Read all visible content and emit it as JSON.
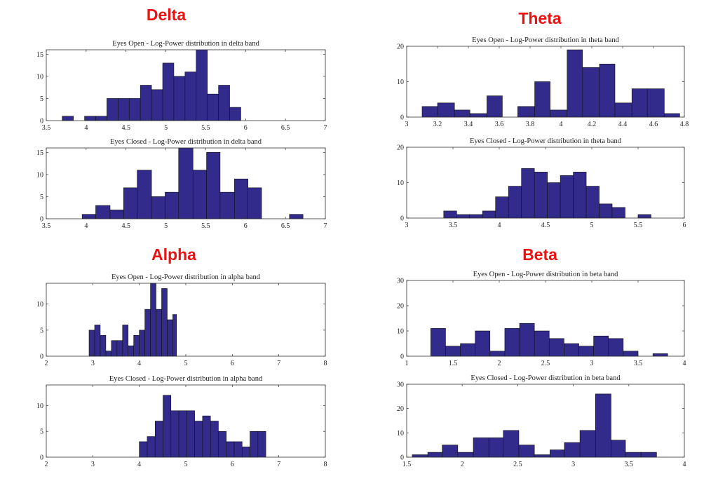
{
  "band_titles": {
    "delta": "Delta",
    "theta": "Theta",
    "alpha": "Alpha",
    "beta": "Beta"
  },
  "chart_data": [
    {
      "type": "histogram",
      "title": "Eyes Open - Log-Power distribution in delta band",
      "xlim": [
        3.5,
        7
      ],
      "ylim": [
        0,
        16
      ],
      "xticks": [
        3.5,
        4,
        4.5,
        5,
        5.5,
        6,
        6.5,
        7
      ],
      "xtick_labels": [
        "3.5",
        "4",
        "4.5",
        "5",
        "5.5",
        "6",
        "6.5",
        "7"
      ],
      "yticks": [
        0,
        5,
        10,
        15
      ],
      "ytick_labels": [
        "0",
        "5",
        "10",
        "15"
      ],
      "bin_edges": [
        3.7,
        3.84,
        3.98,
        4.12,
        4.26,
        4.4,
        4.54,
        4.68,
        4.82,
        4.96,
        5.1,
        5.24,
        5.38,
        5.52,
        5.66,
        5.8,
        5.94
      ],
      "counts": [
        1,
        0,
        1,
        1,
        5,
        5,
        5,
        8,
        7,
        13,
        10,
        11,
        16,
        6,
        8,
        3
      ],
      "color": "#322b8c"
    },
    {
      "type": "histogram",
      "title": "Eyes Closed - Log-Power distribution in delta band",
      "xlim": [
        3.5,
        7
      ],
      "ylim": [
        0,
        16
      ],
      "xticks": [
        3.5,
        4,
        4.5,
        5,
        5.5,
        6,
        6.5,
        7
      ],
      "xtick_labels": [
        "3.5",
        "4",
        "4.5",
        "5",
        "5.5",
        "6",
        "6.5",
        "7"
      ],
      "yticks": [
        0,
        5,
        10,
        15
      ],
      "ytick_labels": [
        "0",
        "5",
        "10",
        "15"
      ],
      "bin_edges": [
        3.95,
        4.12,
        4.3,
        4.47,
        4.64,
        4.82,
        4.99,
        5.16,
        5.34,
        5.51,
        5.68,
        5.86,
        6.03,
        6.2,
        6.38,
        6.55,
        6.72
      ],
      "counts": [
        1,
        3,
        2,
        7,
        11,
        5,
        6,
        16,
        11,
        15,
        6,
        9,
        7,
        0,
        0,
        1
      ],
      "color": "#322b8c"
    },
    {
      "type": "histogram",
      "title": "Eyes Open - Log-Power distribution in theta band",
      "xlim": [
        3,
        4.8
      ],
      "ylim": [
        0,
        20
      ],
      "xticks": [
        3,
        3.2,
        3.4,
        3.6,
        3.8,
        4,
        4.2,
        4.4,
        4.6,
        4.8
      ],
      "xtick_labels": [
        "3",
        "3.2",
        "3.4",
        "3.6",
        "3.8",
        "4",
        "4.2",
        "4.4",
        "4.6",
        "4.8"
      ],
      "yticks": [
        0,
        10,
        20
      ],
      "ytick_labels": [
        "0",
        "10",
        "20"
      ],
      "bin_edges": [
        3.1,
        3.2,
        3.31,
        3.41,
        3.52,
        3.62,
        3.72,
        3.83,
        3.93,
        4.04,
        4.14,
        4.25,
        4.35,
        4.46,
        4.56,
        4.67,
        4.77
      ],
      "counts": [
        3,
        4,
        2,
        1,
        6,
        0,
        3,
        10,
        2,
        19,
        14,
        15,
        4,
        8,
        8,
        1
      ],
      "color": "#322b8c"
    },
    {
      "type": "histogram",
      "title": "Eyes Closed - Log-Power distribution in theta band",
      "xlim": [
        3,
        6
      ],
      "ylim": [
        0,
        20
      ],
      "xticks": [
        3,
        3.5,
        4,
        4.5,
        5,
        5.5,
        6
      ],
      "xtick_labels": [
        "3",
        "3.5",
        "4",
        "4.5",
        "5",
        "5.5",
        "6"
      ],
      "yticks": [
        0,
        10,
        20
      ],
      "ytick_labels": [
        "0",
        "10",
        "20"
      ],
      "bin_edges": [
        3.4,
        3.54,
        3.68,
        3.82,
        3.96,
        4.1,
        4.24,
        4.38,
        4.52,
        4.66,
        4.8,
        4.94,
        5.08,
        5.22,
        5.36,
        5.5,
        5.64
      ],
      "counts": [
        2,
        1,
        1,
        2,
        6,
        9,
        14,
        13,
        10,
        12,
        13,
        9,
        4,
        3,
        0,
        1
      ],
      "color": "#322b8c"
    },
    {
      "type": "histogram",
      "title": "Eyes Open - Log-Power distribution in alpha band",
      "xlim": [
        2,
        8
      ],
      "ylim": [
        0,
        14
      ],
      "xticks": [
        2,
        3,
        4,
        5,
        6,
        7,
        8
      ],
      "xtick_labels": [
        "2",
        "3",
        "4",
        "5",
        "6",
        "7",
        "8"
      ],
      "yticks": [
        0,
        5,
        10
      ],
      "ytick_labels": [
        "0",
        "5",
        "10"
      ],
      "bin_edges": [
        2.92,
        3.04,
        3.16,
        3.28,
        3.4,
        3.52,
        3.64,
        3.76,
        3.88,
        4,
        4.12,
        4.24,
        4.36,
        4.48,
        4.6,
        4.72,
        4.8
      ],
      "counts": [
        5,
        6,
        4,
        1,
        3,
        3,
        6,
        2,
        4,
        5,
        9,
        14,
        9,
        13,
        7,
        8
      ],
      "color": "#322b8c"
    },
    {
      "type": "histogram",
      "title": "Eyes Closed - Log-Power distribution in alpha band",
      "xlim": [
        2,
        8
      ],
      "ylim": [
        0,
        14
      ],
      "xticks": [
        2,
        3,
        4,
        5,
        6,
        7,
        8
      ],
      "xtick_labels": [
        "2",
        "3",
        "4",
        "5",
        "6",
        "7",
        "8"
      ],
      "yticks": [
        0,
        5,
        10
      ],
      "ytick_labels": [
        "0",
        "5",
        "10"
      ],
      "bin_edges": [
        4,
        4.17,
        4.34,
        4.51,
        4.68,
        4.85,
        5.02,
        5.19,
        5.36,
        5.53,
        5.7,
        5.87,
        6.04,
        6.21,
        6.38,
        6.55,
        6.72
      ],
      "counts": [
        3,
        4,
        7,
        12,
        9,
        9,
        9,
        7,
        8,
        7,
        5,
        3,
        3,
        2,
        5,
        5
      ],
      "color": "#322b8c"
    },
    {
      "type": "histogram",
      "title": "Eyes Open - Log-Power distribution in beta band",
      "xlim": [
        1,
        4
      ],
      "ylim": [
        0,
        30
      ],
      "xticks": [
        1,
        1.5,
        2,
        2.5,
        3,
        3.5,
        4
      ],
      "xtick_labels": [
        "1",
        "1.5",
        "2",
        "2.5",
        "3",
        "3.5",
        "4"
      ],
      "yticks": [
        0,
        10,
        20,
        30
      ],
      "ytick_labels": [
        "0",
        "10",
        "20",
        "30"
      ],
      "bin_edges": [
        1.26,
        1.42,
        1.58,
        1.74,
        1.9,
        2.06,
        2.22,
        2.38,
        2.54,
        2.7,
        2.86,
        3.02,
        3.18,
        3.34,
        3.5,
        3.66,
        3.82
      ],
      "counts": [
        11,
        4,
        5,
        10,
        2,
        11,
        13,
        10,
        7,
        5,
        4,
        8,
        7,
        2,
        0,
        1
      ],
      "color": "#322b8c"
    },
    {
      "type": "histogram",
      "title": "Eyes Closed - Log-Power distribution in beta band",
      "xlim": [
        1.5,
        4
      ],
      "ylim": [
        0,
        30
      ],
      "xticks": [
        1.5,
        2,
        2.5,
        3,
        3.5,
        4
      ],
      "xtick_labels": [
        "1.5",
        "2",
        "2.5",
        "3",
        "3.5",
        "4"
      ],
      "yticks": [
        0,
        10,
        20,
        30
      ],
      "ytick_labels": [
        "0",
        "10",
        "20",
        "30"
      ],
      "bin_edges": [
        1.55,
        1.69,
        1.82,
        1.96,
        2.1,
        2.24,
        2.37,
        2.51,
        2.65,
        2.79,
        2.92,
        3.06,
        3.2,
        3.34,
        3.47,
        3.61,
        3.75
      ],
      "counts": [
        1,
        2,
        5,
        2,
        8,
        8,
        11,
        5,
        1,
        3,
        6,
        11,
        26,
        7,
        2,
        2
      ],
      "color": "#322b8c"
    }
  ]
}
